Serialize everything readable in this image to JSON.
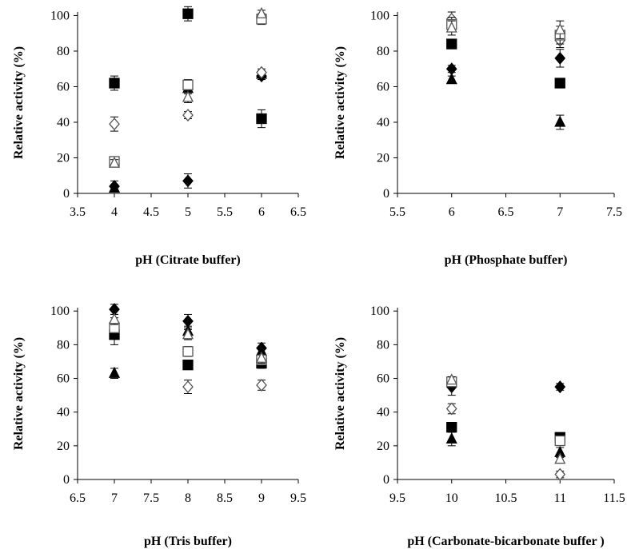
{
  "chart_data": [
    {
      "type": "scatter",
      "xlabel": "pH (Citrate buffer)",
      "ylabel": "Relative activity (%)",
      "xlim": [
        3.5,
        6.5
      ],
      "ylim": [
        0,
        100
      ],
      "xticks": [
        "3.5",
        "4",
        "4.5",
        "5",
        "5.5",
        "6",
        "6.5"
      ],
      "yticks": [
        "0",
        "20",
        "40",
        "60",
        "80",
        "100"
      ],
      "grid": false,
      "series": [
        {
          "marker": "filled-diamond",
          "points": [
            {
              "x": 4,
              "y": 4,
              "err": 3
            },
            {
              "x": 5,
              "y": 7,
              "err": 4
            },
            {
              "x": 6,
              "y": 66,
              "err": 2
            }
          ]
        },
        {
          "marker": "filled-square",
          "points": [
            {
              "x": 4,
              "y": 62,
              "err": 4
            },
            {
              "x": 5,
              "y": 101,
              "err": 4
            },
            {
              "x": 6,
              "y": 42,
              "err": 5
            }
          ]
        },
        {
          "marker": "filled-triangle",
          "points": [
            {
              "x": 4,
              "y": 3,
              "err": 2
            },
            {
              "x": 5,
              "y": 59,
              "err": 3
            },
            {
              "x": 6,
              "y": 67,
              "err": 2
            }
          ]
        },
        {
          "marker": "open-diamond",
          "points": [
            {
              "x": 4,
              "y": 39,
              "err": 4
            },
            {
              "x": 5,
              "y": 44,
              "err": 2
            },
            {
              "x": 6,
              "y": 68,
              "err": 2
            }
          ]
        },
        {
          "marker": "open-square",
          "points": [
            {
              "x": 4,
              "y": 18,
              "err": 2
            },
            {
              "x": 5,
              "y": 61,
              "err": 3
            },
            {
              "x": 6,
              "y": 98,
              "err": 3
            }
          ]
        },
        {
          "marker": "open-triangle",
          "points": [
            {
              "x": 4,
              "y": 17,
              "err": 2
            },
            {
              "x": 5,
              "y": 54,
              "err": 3
            },
            {
              "x": 6,
              "y": 101,
              "err": 2
            }
          ]
        }
      ]
    },
    {
      "type": "scatter",
      "xlabel": "pH (Phosphate buffer)",
      "ylabel": "Relative activity (%)",
      "xlim": [
        5.5,
        7.5
      ],
      "ylim": [
        0,
        100
      ],
      "xticks": [
        "5.5",
        "6",
        "6.5",
        "7",
        "7.5"
      ],
      "yticks": [
        "0",
        "20",
        "40",
        "60",
        "80",
        "100"
      ],
      "grid": false,
      "series": [
        {
          "marker": "filled-diamond",
          "points": [
            {
              "x": 6,
              "y": 70,
              "err": 2
            },
            {
              "x": 7,
              "y": 76,
              "err": 5
            }
          ]
        },
        {
          "marker": "filled-square",
          "points": [
            {
              "x": 6,
              "y": 84,
              "err": 2
            },
            {
              "x": 7,
              "y": 62,
              "err": 2
            }
          ]
        },
        {
          "marker": "filled-triangle",
          "points": [
            {
              "x": 6,
              "y": 64,
              "err": 2
            },
            {
              "x": 7,
              "y": 40,
              "err": 4
            }
          ]
        },
        {
          "marker": "open-diamond",
          "points": [
            {
              "x": 6,
              "y": 98,
              "err": 4
            },
            {
              "x": 7,
              "y": 86,
              "err": 4
            }
          ]
        },
        {
          "marker": "open-square",
          "points": [
            {
              "x": 6,
              "y": 95,
              "err": 4
            },
            {
              "x": 7,
              "y": 89,
              "err": 5
            }
          ]
        },
        {
          "marker": "open-triangle",
          "points": [
            {
              "x": 6,
              "y": 93,
              "err": 4
            },
            {
              "x": 7,
              "y": 92,
              "err": 5
            }
          ]
        }
      ]
    },
    {
      "type": "scatter",
      "xlabel": "pH (Tris buffer)",
      "ylabel": "Relative activity (%)",
      "xlim": [
        6.5,
        9.5
      ],
      "ylim": [
        0,
        100
      ],
      "xticks": [
        "6.5",
        "7",
        "7.5",
        "8",
        "8.5",
        "9",
        "9.5"
      ],
      "yticks": [
        "0",
        "20",
        "40",
        "60",
        "80",
        "100"
      ],
      "grid": false,
      "series": [
        {
          "marker": "filled-diamond",
          "points": [
            {
              "x": 7,
              "y": 101,
              "err": 3
            },
            {
              "x": 8,
              "y": 94,
              "err": 4
            },
            {
              "x": 9,
              "y": 78,
              "err": 3
            }
          ]
        },
        {
          "marker": "filled-square",
          "points": [
            {
              "x": 7,
              "y": 86,
              "err": 6
            },
            {
              "x": 8,
              "y": 68,
              "err": 2
            },
            {
              "x": 9,
              "y": 69,
              "err": 3
            }
          ]
        },
        {
          "marker": "filled-triangle",
          "points": [
            {
              "x": 7,
              "y": 63,
              "err": 3
            },
            {
              "x": 8,
              "y": 88,
              "err": 3
            },
            {
              "x": 9,
              "y": 76,
              "err": 3
            }
          ]
        },
        {
          "marker": "open-diamond",
          "points": [
            {
              "x": 7,
              "y": 93,
              "err": 3
            },
            {
              "x": 8,
              "y": 55,
              "err": 4
            },
            {
              "x": 9,
              "y": 56,
              "err": 3
            }
          ]
        },
        {
          "marker": "open-square",
          "points": [
            {
              "x": 7,
              "y": 90,
              "err": 3
            },
            {
              "x": 8,
              "y": 76,
              "err": 3
            },
            {
              "x": 9,
              "y": 71,
              "err": 3
            }
          ]
        },
        {
          "marker": "open-triangle",
          "points": [
            {
              "x": 7,
              "y": 95,
              "err": 3
            },
            {
              "x": 8,
              "y": 86,
              "err": 3
            },
            {
              "x": 9,
              "y": 72,
              "err": 3
            }
          ]
        }
      ]
    },
    {
      "type": "scatter",
      "xlabel": "pH (Carbonate-bicarbonate buffer )",
      "ylabel": "Relative activity (%)",
      "xlim": [
        9.5,
        11.5
      ],
      "ylim": [
        0,
        100
      ],
      "xticks": [
        "9.5",
        "10",
        "10.5",
        "11",
        "11.5"
      ],
      "yticks": [
        "0",
        "20",
        "40",
        "60",
        "80",
        "100"
      ],
      "grid": false,
      "series": [
        {
          "marker": "filled-diamond",
          "points": [
            {
              "x": 10,
              "y": 55,
              "err": 5
            },
            {
              "x": 11,
              "y": 55,
              "err": 2
            }
          ]
        },
        {
          "marker": "filled-square",
          "points": [
            {
              "x": 10,
              "y": 31,
              "err": 2
            },
            {
              "x": 11,
              "y": 25,
              "err": 2
            }
          ]
        },
        {
          "marker": "filled-triangle",
          "points": [
            {
              "x": 10,
              "y": 24,
              "err": 4
            },
            {
              "x": 11,
              "y": 16,
              "err": 3
            }
          ]
        },
        {
          "marker": "open-diamond",
          "points": [
            {
              "x": 10,
              "y": 42,
              "err": 3
            },
            {
              "x": 11,
              "y": 3,
              "err": 2
            }
          ]
        },
        {
          "marker": "open-square",
          "points": [
            {
              "x": 10,
              "y": 58,
              "err": 2
            },
            {
              "x": 11,
              "y": 23,
              "err": 2
            }
          ]
        },
        {
          "marker": "open-triangle",
          "points": [
            {
              "x": 10,
              "y": 59,
              "err": 2
            },
            {
              "x": 11,
              "y": 12,
              "err": 2
            }
          ]
        }
      ]
    }
  ]
}
